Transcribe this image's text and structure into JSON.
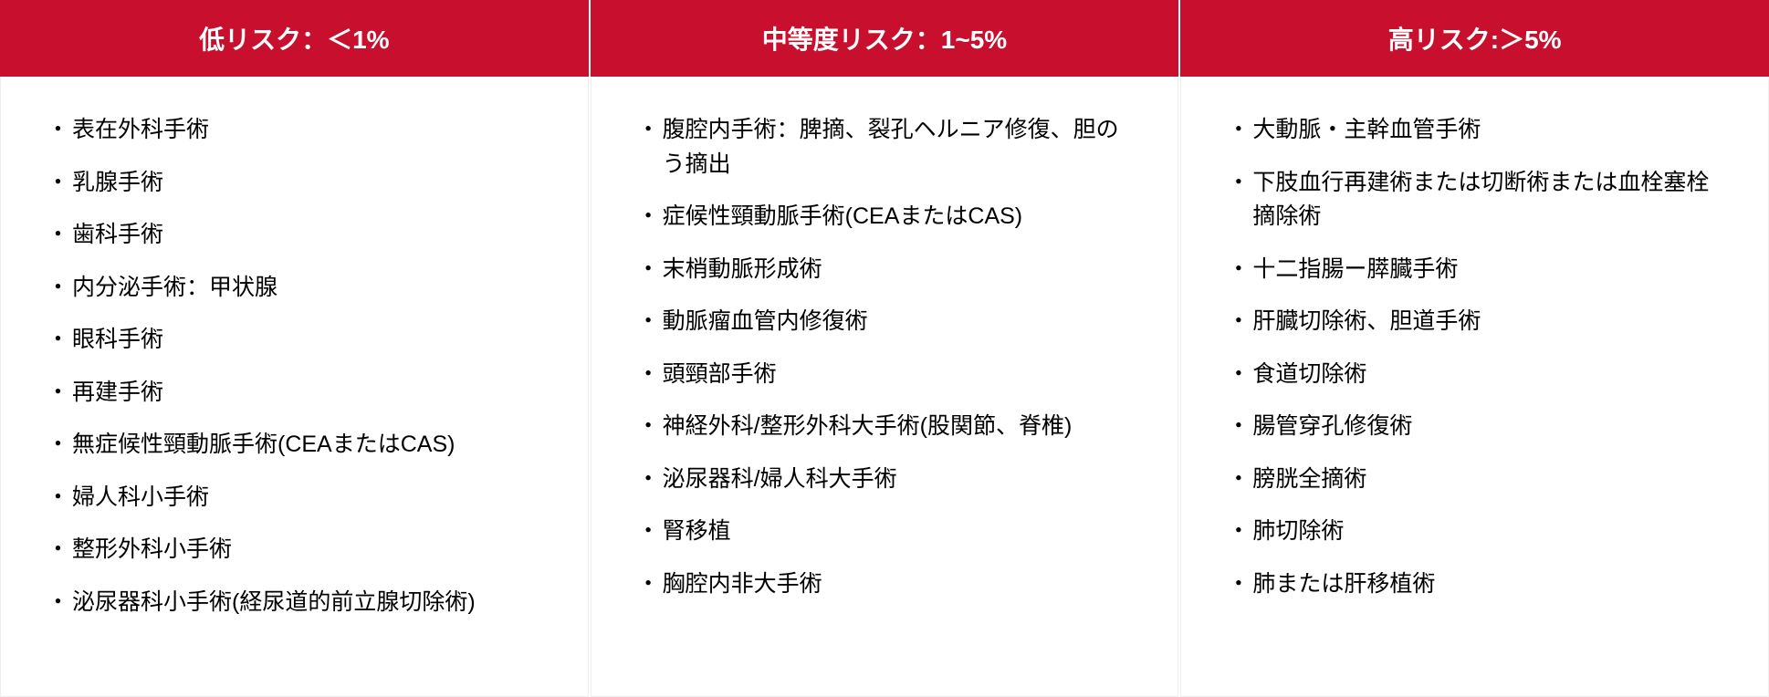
{
  "table": {
    "header_bg": "#c8102e",
    "header_fg": "#ffffff",
    "body_bg": "#ffffff",
    "border_color": "#eeeeee",
    "font_size_header": 28,
    "font_size_body": 25,
    "columns": [
      {
        "header": "低リスク：＜1%",
        "items": [
          "表在外科手術",
          "乳腺手術",
          "歯科手術",
          "内分泌手術：甲状腺",
          "眼科手術",
          "再建手術",
          "無症候性頸動脈手術(CEAまたはCAS)",
          "婦人科小手術",
          "整形外科小手術",
          "泌尿器科小手術(経尿道的前立腺切除術)"
        ]
      },
      {
        "header": "中等度リスク：1~5%",
        "items": [
          "腹腔内手術：脾摘、裂孔ヘルニア修復、胆のう摘出",
          "症候性頸動脈手術(CEAまたはCAS)",
          "末梢動脈形成術",
          "動脈瘤血管内修復術",
          "頭頸部手術",
          "神経外科/整形外科大手術(股関節、脊椎)",
          "泌尿器科/婦人科大手術",
          "腎移植",
          "胸腔内非大手術"
        ]
      },
      {
        "header": "高リスク:＞5%",
        "items": [
          "大動脈・主幹血管手術",
          "下肢血行再建術または切断術または血栓塞栓摘除術",
          "十二指腸ー膵臓手術",
          "肝臓切除術、胆道手術",
          "食道切除術",
          "腸管穿孔修復術",
          "膀胱全摘術",
          "肺切除術",
          "肺または肝移植術"
        ]
      }
    ]
  }
}
